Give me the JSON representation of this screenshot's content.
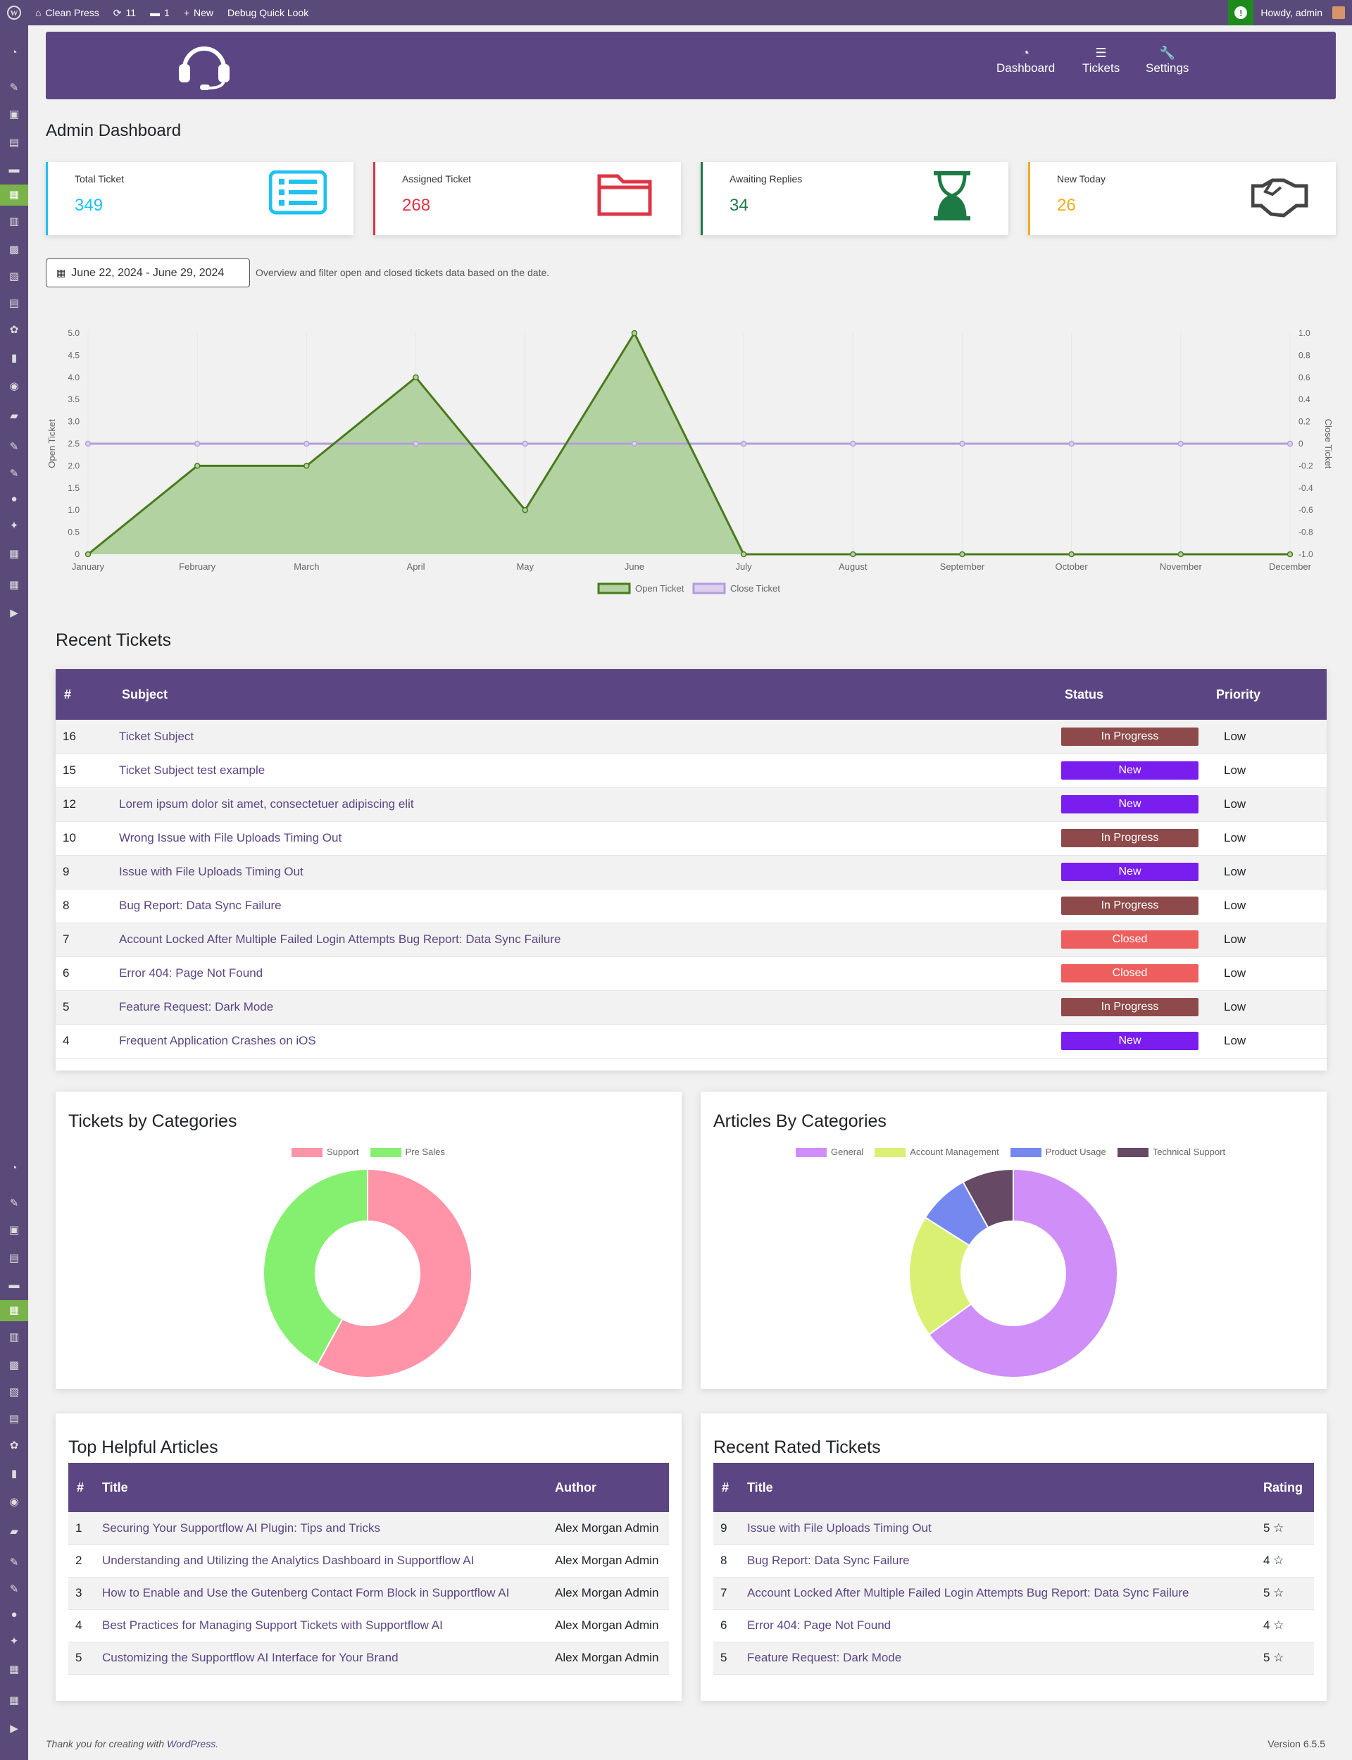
{
  "adminbar": {
    "site_name": "Clean Press",
    "updates_count": "11",
    "comments_count": "1",
    "new_label": "New",
    "debug_label": "Debug Quick Look",
    "greeting": "Howdy, admin"
  },
  "nav": {
    "dashboard": "Dashboard",
    "tickets": "Tickets",
    "settings": "Settings"
  },
  "page_title": "Admin Dashboard",
  "stats": [
    {
      "label": "Total Ticket",
      "value": "349",
      "color": "#1ec1f0",
      "icon": "list-icon"
    },
    {
      "label": "Assigned Ticket",
      "value": "268",
      "color": "#dc3545",
      "icon": "folder-icon"
    },
    {
      "label": "Awaiting Replies",
      "value": "34",
      "color": "#1e7a45",
      "icon": "hourglass-icon"
    },
    {
      "label": "New Today",
      "value": "26",
      "color": "#f0ad1e",
      "icon": "handshake-icon"
    }
  ],
  "date_filter": {
    "range": "June 22, 2024 - June 29, 2024",
    "hint": "Overview and filter open and closed tickets data based on the date."
  },
  "chart_data": {
    "type": "line",
    "categories": [
      "January",
      "February",
      "March",
      "April",
      "May",
      "June",
      "July",
      "August",
      "September",
      "October",
      "November",
      "December"
    ],
    "series": [
      {
        "name": "Open Ticket",
        "values": [
          0,
          2,
          2,
          4,
          1,
          5,
          0,
          0,
          0,
          0,
          0,
          0
        ],
        "color": "#4a7a1e",
        "fill": "#b2d3a1",
        "axis": "left"
      },
      {
        "name": "Close Ticket",
        "values": [
          0,
          0,
          0,
          0,
          0,
          0,
          0,
          0,
          0,
          0,
          0,
          0
        ],
        "color": "#b39ddb",
        "axis": "right"
      }
    ],
    "ylabel_left": "Open Ticket",
    "ylabel_right": "Close Ticket",
    "ylim_left": [
      0,
      5
    ],
    "yticks_left": [
      "0",
      "0.5",
      "1.0",
      "1.5",
      "2.0",
      "2.5",
      "3.0",
      "3.5",
      "4.0",
      "4.5",
      "5.0"
    ],
    "ylim_right": [
      -1,
      1
    ],
    "yticks_right": [
      "-1.0",
      "-0.8",
      "-0.6",
      "-0.4",
      "-0.2",
      "0",
      "0.2",
      "0.4",
      "0.6",
      "0.8",
      "1.0"
    ],
    "grid": true,
    "legend_position": "bottom"
  },
  "recent_tickets": {
    "title": "Recent Tickets",
    "headers": [
      "#",
      "Subject",
      "Status",
      "Priority"
    ],
    "rows": [
      {
        "id": "16",
        "subject": "Ticket Subject",
        "status": "In Progress",
        "priority": "Low"
      },
      {
        "id": "15",
        "subject": "Ticket Subject test example",
        "status": "New",
        "priority": "Low"
      },
      {
        "id": "12",
        "subject": "Lorem ipsum dolor sit amet, consectetuer adipiscing elit",
        "status": "New",
        "priority": "Low"
      },
      {
        "id": "10",
        "subject": "Wrong Issue with File Uploads Timing Out",
        "status": "In Progress",
        "priority": "Low"
      },
      {
        "id": "9",
        "subject": "Issue with File Uploads Timing Out",
        "status": "New",
        "priority": "Low"
      },
      {
        "id": "8",
        "subject": "Bug Report: Data Sync Failure",
        "status": "In Progress",
        "priority": "Low"
      },
      {
        "id": "7",
        "subject": "Account Locked After Multiple Failed Login Attempts Bug Report: Data Sync Failure",
        "status": "Closed",
        "priority": "Low"
      },
      {
        "id": "6",
        "subject": "Error 404: Page Not Found",
        "status": "Closed",
        "priority": "Low"
      },
      {
        "id": "5",
        "subject": "Feature Request: Dark Mode",
        "status": "In Progress",
        "priority": "Low"
      },
      {
        "id": "4",
        "subject": "Frequent Application Crashes on iOS",
        "status": "New",
        "priority": "Low"
      }
    ],
    "status_colors": {
      "In Progress": "#8e4a4a",
      "New": "#7a1ef0",
      "Closed": "#ee5e5e"
    }
  },
  "tickets_by_categories": {
    "title": "Tickets by Categories",
    "chart_data": {
      "type": "pie",
      "labels": [
        "Support",
        "Pre Sales"
      ],
      "values": [
        58,
        42
      ],
      "colors": [
        "#ff94a8",
        "#85f070"
      ]
    }
  },
  "articles_by_categories": {
    "title": "Articles By Categories",
    "chart_data": {
      "type": "pie",
      "labels": [
        "General",
        "Account Management",
        "Product Usage",
        "Technical Support"
      ],
      "values": [
        65,
        19,
        8,
        8
      ],
      "colors": [
        "#d08ef8",
        "#d9f072",
        "#7588ef",
        "#654965"
      ]
    }
  },
  "top_articles": {
    "title": "Top Helpful Articles",
    "headers": [
      "#",
      "Title",
      "Author"
    ],
    "rows": [
      {
        "n": "1",
        "title": "Securing Your Supportflow AI Plugin: Tips and Tricks",
        "author": "Alex Morgan Admin"
      },
      {
        "n": "2",
        "title": "Understanding and Utilizing the Analytics Dashboard in Supportflow AI",
        "author": "Alex Morgan Admin"
      },
      {
        "n": "3",
        "title": "How to Enable and Use the Gutenberg Contact Form Block in Supportflow AI",
        "author": "Alex Morgan Admin"
      },
      {
        "n": "4",
        "title": "Best Practices for Managing Support Tickets with Supportflow AI",
        "author": "Alex Morgan Admin"
      },
      {
        "n": "5",
        "title": "Customizing the Supportflow AI Interface for Your Brand",
        "author": "Alex Morgan Admin"
      }
    ]
  },
  "rated_tickets": {
    "title": "Recent Rated Tickets",
    "headers": [
      "#",
      "Title",
      "Rating"
    ],
    "rows": [
      {
        "n": "9",
        "title": "Issue with File Uploads Timing Out",
        "rating": "5 ☆"
      },
      {
        "n": "8",
        "title": "Bug Report: Data Sync Failure",
        "rating": "4 ☆"
      },
      {
        "n": "7",
        "title": "Account Locked After Multiple Failed Login Attempts Bug Report: Data Sync Failure",
        "rating": "5 ☆"
      },
      {
        "n": "6",
        "title": "Error 404: Page Not Found",
        "rating": "4 ☆"
      },
      {
        "n": "5",
        "title": "Feature Request: Dark Mode",
        "rating": "5 ☆"
      }
    ]
  },
  "footer": {
    "thanks_prefix": "Thank you for creating with ",
    "thanks_link": "WordPress",
    "thanks_suffix": ".",
    "version": "Version 6.5.5"
  }
}
